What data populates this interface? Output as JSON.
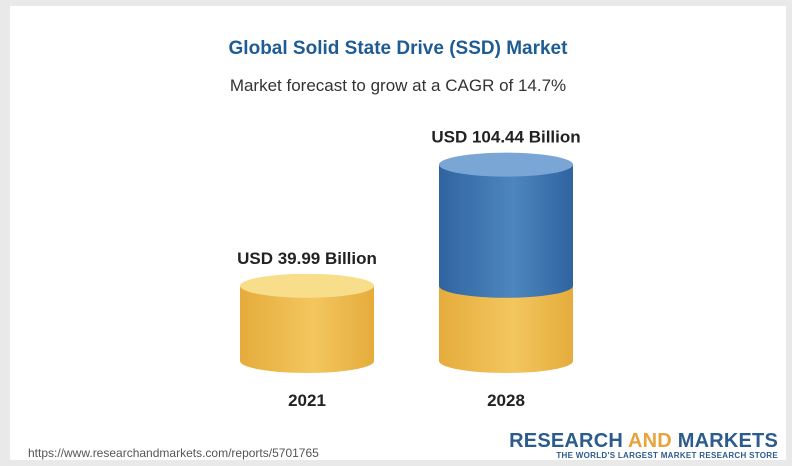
{
  "chart_data": {
    "type": "bar",
    "title": "Global Solid State Drive (SSD) Market",
    "subtitle": "Market forecast to grow at a CAGR of 14.7%",
    "categories": [
      "2021",
      "2028"
    ],
    "values": [
      39.99,
      104.44
    ],
    "value_labels": [
      "USD 39.99 Billion",
      "USD 104.44 Billion"
    ],
    "style": "cylinder",
    "colors": {
      "base": "#f3c65e",
      "base_dark": "#e5ac3c",
      "base_top": "#f8dd8a",
      "growth": "#4d86be",
      "growth_dark": "#2f64a0",
      "growth_top": "#7aa6d6"
    }
  },
  "footer": {
    "source_url": "https://www.researchandmarkets.com/reports/5701765",
    "brand_part1": "RESEARCH ",
    "brand_part2": "AND",
    "brand_part3": " MARKETS",
    "brand_tagline": "THE WORLD'S LARGEST MARKET RESEARCH STORE"
  }
}
